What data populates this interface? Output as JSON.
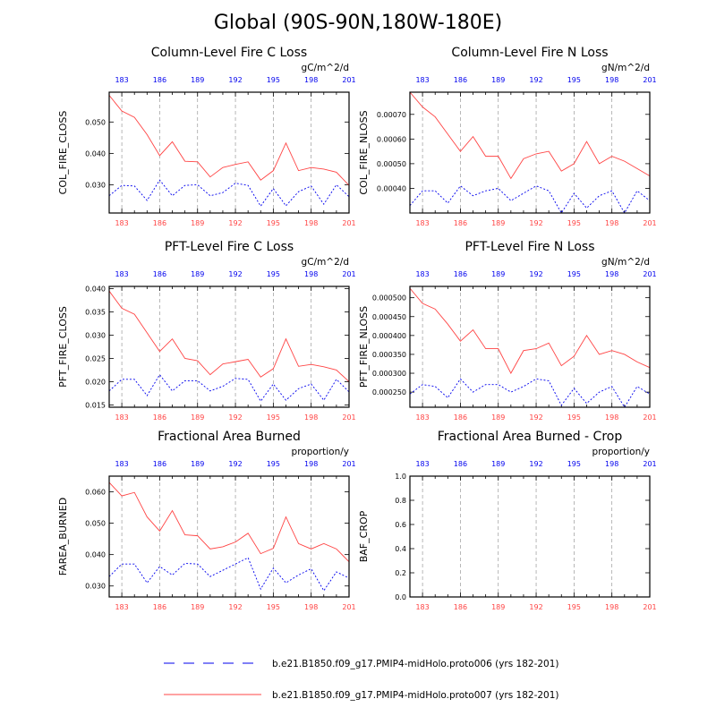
{
  "title": "Global (90S-90N,180W-180E)",
  "colors": {
    "red": "#ff4444",
    "blue": "#0000ee",
    "grid": "#999999"
  },
  "chart_data": [
    {
      "type": "line",
      "title": "Column-Level Fire C Loss",
      "ylabel": "COL_FIRE_CLOSS",
      "units": "gC/m^2/d",
      "xlim": [
        182,
        201
      ],
      "ylim": [
        0.021,
        0.0595
      ],
      "yticks": [
        0.03,
        0.04,
        0.05
      ],
      "ytick_labels": [
        "0.030",
        "0.040",
        "0.050"
      ],
      "xticks": [
        183,
        186,
        189,
        192,
        195,
        198,
        201
      ],
      "x": [
        182,
        183,
        184,
        185,
        186,
        187,
        188,
        189,
        190,
        191,
        192,
        193,
        194,
        195,
        196,
        197,
        198,
        199,
        200,
        201
      ],
      "series": [
        {
          "name": "b.e21.B1850.f09_g17.PMIP4-midHolo.proto006 (yrs 182-201)",
          "style": "dashed",
          "values": [
            0.0265,
            0.0298,
            0.0296,
            0.025,
            0.0315,
            0.0265,
            0.0298,
            0.03,
            0.0265,
            0.0275,
            0.0305,
            0.0298,
            0.0232,
            0.0288,
            0.0233,
            0.0278,
            0.0296,
            0.0238,
            0.03,
            0.0262
          ]
        },
        {
          "name": "b.e21.B1850.f09_g17.PMIP4-midHolo.proto007 (yrs 182-201)",
          "style": "solid",
          "values": [
            0.0585,
            0.0535,
            0.0515,
            0.046,
            0.0393,
            0.0437,
            0.0375,
            0.0373,
            0.0325,
            0.0355,
            0.0365,
            0.0373,
            0.0315,
            0.0345,
            0.0433,
            0.0345,
            0.0355,
            0.035,
            0.034,
            0.0298
          ]
        }
      ]
    },
    {
      "type": "line",
      "title": "Column-Level Fire N Loss",
      "ylabel": "COL_FIRE_NLOSS",
      "units": "gN/m^2/d",
      "xlim": [
        182,
        201
      ],
      "ylim": [
        0.0003,
        0.00079
      ],
      "yticks": [
        0.0004,
        0.0005,
        0.0006,
        0.0007
      ],
      "ytick_labels": [
        "0.00040",
        "0.00050",
        "0.00060",
        "0.00070"
      ],
      "xticks": [
        183,
        186,
        189,
        192,
        195,
        198,
        201
      ],
      "x": [
        182,
        183,
        184,
        185,
        186,
        187,
        188,
        189,
        190,
        191,
        192,
        193,
        194,
        195,
        196,
        197,
        198,
        199,
        200,
        201
      ],
      "series": [
        {
          "name": "b.e21.B1850.f09_g17.PMIP4-midHolo.proto006 (yrs 182-201)",
          "style": "dashed",
          "values": [
            0.00033,
            0.00039,
            0.00039,
            0.00034,
            0.00041,
            0.00037,
            0.00039,
            0.0004,
            0.00035,
            0.00038,
            0.00041,
            0.00039,
            0.0003,
            0.00038,
            0.00032,
            0.00037,
            0.00039,
            0.0003,
            0.00039,
            0.00035
          ]
        },
        {
          "name": "b.e21.B1850.f09_g17.PMIP4-midHolo.proto007 (yrs 182-201)",
          "style": "solid",
          "values": [
            0.00079,
            0.00073,
            0.00069,
            0.00062,
            0.00055,
            0.00061,
            0.00053,
            0.00053,
            0.00044,
            0.00052,
            0.00054,
            0.00055,
            0.00047,
            0.0005,
            0.00059,
            0.0005,
            0.00053,
            0.00051,
            0.00048,
            0.00045
          ]
        }
      ]
    },
    {
      "type": "line",
      "title": "PFT-Level Fire C Loss",
      "ylabel": "PFT_FIRE_CLOSS",
      "units": "gC/m^2/d",
      "xlim": [
        182,
        201
      ],
      "ylim": [
        0.0145,
        0.0405
      ],
      "yticks": [
        0.015,
        0.02,
        0.025,
        0.03,
        0.035,
        0.04
      ],
      "ytick_labels": [
        "0.015",
        "0.020",
        "0.025",
        "0.030",
        "0.035",
        "0.040"
      ],
      "xticks": [
        183,
        186,
        189,
        192,
        195,
        198,
        201
      ],
      "x": [
        182,
        183,
        184,
        185,
        186,
        187,
        188,
        189,
        190,
        191,
        192,
        193,
        194,
        195,
        196,
        197,
        198,
        199,
        200,
        201
      ],
      "series": [
        {
          "name": "b.e21.B1850.f09_g17.PMIP4-midHolo.proto006 (yrs 182-201)",
          "style": "dashed",
          "values": [
            0.018,
            0.0205,
            0.0205,
            0.017,
            0.0215,
            0.018,
            0.0202,
            0.0202,
            0.018,
            0.019,
            0.0207,
            0.0205,
            0.0158,
            0.0195,
            0.016,
            0.0185,
            0.0195,
            0.016,
            0.0205,
            0.0178
          ]
        },
        {
          "name": "b.e21.B1850.f09_g17.PMIP4-midHolo.proto007 (yrs 182-201)",
          "style": "solid",
          "values": [
            0.0395,
            0.0358,
            0.0345,
            0.0305,
            0.0265,
            0.0292,
            0.025,
            0.0245,
            0.0215,
            0.0238,
            0.0243,
            0.0248,
            0.021,
            0.0228,
            0.0292,
            0.0233,
            0.0237,
            0.0232,
            0.0225,
            0.02
          ]
        }
      ]
    },
    {
      "type": "line",
      "title": "PFT-Level Fire N Loss",
      "ylabel": "PFT_FIRE_NLOSS",
      "units": "gN/m^2/d",
      "xlim": [
        182,
        201
      ],
      "ylim": [
        0.00021,
        0.00053
      ],
      "yticks": [
        0.00025,
        0.0003,
        0.00035,
        0.0004,
        0.00045,
        0.0005
      ],
      "ytick_labels": [
        "0.000250",
        "0.000300",
        "0.000350",
        "0.000400",
        "0.000450",
        "0.000500"
      ],
      "xticks": [
        183,
        186,
        189,
        192,
        195,
        198,
        201
      ],
      "x": [
        182,
        183,
        184,
        185,
        186,
        187,
        188,
        189,
        190,
        191,
        192,
        193,
        194,
        195,
        196,
        197,
        198,
        199,
        200,
        201
      ],
      "series": [
        {
          "name": "b.e21.B1850.f09_g17.PMIP4-midHolo.proto006 (yrs 182-201)",
          "style": "dashed",
          "values": [
            0.000245,
            0.00027,
            0.000265,
            0.000235,
            0.000285,
            0.00025,
            0.00027,
            0.00027,
            0.00025,
            0.000265,
            0.000285,
            0.00028,
            0.000215,
            0.00026,
            0.00022,
            0.00025,
            0.000265,
            0.00021,
            0.000265,
            0.000245
          ]
        },
        {
          "name": "b.e21.B1850.f09_g17.PMIP4-midHolo.proto007 (yrs 182-201)",
          "style": "solid",
          "values": [
            0.000525,
            0.000485,
            0.00047,
            0.00043,
            0.000385,
            0.000415,
            0.000365,
            0.000365,
            0.0003,
            0.00036,
            0.000365,
            0.00038,
            0.00032,
            0.000345,
            0.0004,
            0.00035,
            0.00036,
            0.00035,
            0.00033,
            0.000315
          ]
        }
      ]
    },
    {
      "type": "line",
      "title": "Fractional Area Burned",
      "ylabel": "FAREA_BURNED",
      "units": "proportion/y",
      "xlim": [
        182,
        201
      ],
      "ylim": [
        0.0265,
        0.065
      ],
      "yticks": [
        0.03,
        0.04,
        0.05,
        0.06
      ],
      "ytick_labels": [
        "0.030",
        "0.040",
        "0.050",
        "0.060"
      ],
      "xticks": [
        183,
        186,
        189,
        192,
        195,
        198,
        201
      ],
      "x": [
        182,
        183,
        184,
        185,
        186,
        187,
        188,
        189,
        190,
        191,
        192,
        193,
        194,
        195,
        196,
        197,
        198,
        199,
        200,
        201
      ],
      "series": [
        {
          "name": "b.e21.B1850.f09_g17.PMIP4-midHolo.proto006 (yrs 182-201)",
          "style": "dashed",
          "values": [
            0.033,
            0.037,
            0.037,
            0.031,
            0.0362,
            0.0335,
            0.0372,
            0.037,
            0.033,
            0.035,
            0.037,
            0.039,
            0.029,
            0.0357,
            0.031,
            0.0335,
            0.0355,
            0.0285,
            0.0345,
            0.0325
          ]
        },
        {
          "name": "b.e21.B1850.f09_g17.PMIP4-midHolo.proto007 (yrs 182-201)",
          "style": "solid",
          "values": [
            0.063,
            0.0587,
            0.0598,
            0.052,
            0.0475,
            0.054,
            0.0463,
            0.046,
            0.0418,
            0.0425,
            0.044,
            0.0468,
            0.0403,
            0.042,
            0.052,
            0.0435,
            0.0418,
            0.0435,
            0.0418,
            0.0377
          ]
        }
      ]
    },
    {
      "type": "line",
      "title": "Fractional Area Burned - Crop",
      "ylabel": "BAF_CROP",
      "units": "proportion/y",
      "xlim": [
        182,
        201
      ],
      "ylim": [
        0,
        1
      ],
      "yticks": [
        0,
        0.2,
        0.4,
        0.6,
        0.8,
        1.0
      ],
      "ytick_labels": [
        "0.0",
        "0.2",
        "0.4",
        "0.6",
        "0.8",
        "1.0"
      ],
      "xticks": [
        183,
        186,
        189,
        192,
        195,
        198,
        201
      ],
      "x": [],
      "series": []
    }
  ],
  "legend": [
    {
      "style": "dashed",
      "label": "b.e21.B1850.f09_g17.PMIP4-midHolo.proto006 (yrs 182-201)"
    },
    {
      "style": "solid",
      "label": "b.e21.B1850.f09_g17.PMIP4-midHolo.proto007 (yrs 182-201)"
    }
  ]
}
